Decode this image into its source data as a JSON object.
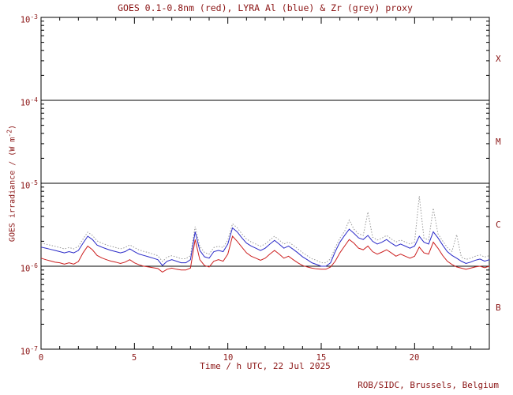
{
  "colors": {
    "text": "#8b1515",
    "frame": "#000000",
    "red_series": "#cc2020",
    "blue_series": "#2a2ac8",
    "grey_series": "#9a9a9a"
  },
  "footer": {
    "text": "ROB/SIDC, Brussels, Belgium"
  },
  "chart_data": {
    "type": "line",
    "title": "GOES 0.1-0.8nm (red), LYRA Al (blue) & Zr (grey) proxy",
    "xlabel": "Time / h UTC, 22 Jul 2025",
    "ylabel_parts": {
      "pre": "GOES irradiance / (W m",
      "exp": "-2",
      "post": ")"
    },
    "xlim": [
      0,
      24
    ],
    "ylim": [
      1e-07,
      0.001
    ],
    "y_scale": "log",
    "grid": false,
    "legend": "in title",
    "x_tick_positions": [
      0,
      5,
      10,
      15,
      20
    ],
    "x_tick_labels": [
      "0",
      "5",
      "10",
      "15",
      "20"
    ],
    "y_ticks": [
      {
        "base": "10",
        "exp": "-3"
      },
      {
        "base": "10",
        "exp": "-4"
      },
      {
        "base": "10",
        "exp": "-5"
      },
      {
        "base": "10",
        "exp": "-6"
      },
      {
        "base": "10",
        "exp": "-7"
      }
    ],
    "class_labels": [
      "X",
      "M",
      "C",
      "B"
    ],
    "hlines": [
      0.0001,
      1e-05,
      1e-06
    ],
    "x_start": 0,
    "x_step": 0.25,
    "unit_scale": 1e-06,
    "series": [
      {
        "name": "LYRA Zr proxy",
        "color_key": "grey",
        "style": "dotted",
        "values": [
          1.9,
          1.85,
          1.79,
          1.74,
          1.68,
          1.62,
          1.68,
          1.62,
          1.74,
          2.13,
          2.58,
          2.35,
          2.02,
          1.9,
          1.81,
          1.74,
          1.68,
          1.62,
          1.68,
          1.81,
          1.68,
          1.57,
          1.51,
          1.46,
          1.4,
          1.34,
          1.14,
          1.29,
          1.34,
          1.29,
          1.23,
          1.23,
          1.34,
          3.0,
          1.74,
          1.46,
          1.4,
          1.68,
          1.74,
          1.68,
          2.07,
          3.25,
          2.91,
          2.46,
          2.13,
          1.96,
          1.85,
          1.74,
          1.85,
          2.07,
          2.3,
          2.07,
          1.85,
          1.96,
          1.79,
          1.62,
          1.46,
          1.34,
          1.23,
          1.18,
          1.1,
          1.1,
          1.23,
          1.68,
          2.18,
          2.63,
          3.6,
          2.8,
          2.46,
          2.35,
          4.5,
          2.24,
          2.07,
          2.18,
          2.35,
          2.13,
          1.96,
          2.07,
          1.96,
          1.85,
          1.96,
          7.0,
          2.18,
          2.07,
          5.0,
          2.46,
          2.02,
          1.68,
          1.51,
          2.4,
          1.29,
          1.21,
          1.25,
          1.32,
          1.37,
          1.29,
          1.34
        ]
      },
      {
        "name": "LYRA Al proxy",
        "color_key": "blue",
        "style": "solid",
        "values": [
          1.7,
          1.65,
          1.6,
          1.55,
          1.5,
          1.45,
          1.5,
          1.45,
          1.55,
          1.9,
          2.3,
          2.1,
          1.8,
          1.7,
          1.62,
          1.55,
          1.5,
          1.45,
          1.5,
          1.62,
          1.5,
          1.4,
          1.35,
          1.3,
          1.25,
          1.2,
          1.02,
          1.15,
          1.2,
          1.15,
          1.1,
          1.1,
          1.2,
          2.6,
          1.55,
          1.3,
          1.25,
          1.5,
          1.55,
          1.5,
          1.85,
          2.9,
          2.6,
          2.2,
          1.9,
          1.75,
          1.65,
          1.55,
          1.65,
          1.85,
          2.05,
          1.85,
          1.65,
          1.75,
          1.6,
          1.45,
          1.3,
          1.2,
          1.1,
          1.05,
          1.0,
          1.0,
          1.1,
          1.5,
          1.95,
          2.35,
          2.8,
          2.5,
          2.2,
          2.1,
          2.35,
          2.0,
          1.85,
          1.95,
          2.1,
          1.9,
          1.75,
          1.85,
          1.75,
          1.65,
          1.75,
          2.3,
          1.95,
          1.85,
          2.6,
          2.2,
          1.8,
          1.5,
          1.35,
          1.25,
          1.15,
          1.08,
          1.12,
          1.18,
          1.22,
          1.15,
          1.2
        ]
      },
      {
        "name": "GOES 0.1-0.8nm",
        "color_key": "red",
        "style": "solid",
        "values": [
          1.25,
          1.2,
          1.16,
          1.12,
          1.1,
          1.06,
          1.1,
          1.06,
          1.14,
          1.45,
          1.75,
          1.58,
          1.35,
          1.26,
          1.2,
          1.15,
          1.12,
          1.08,
          1.12,
          1.2,
          1.1,
          1.04,
          1.0,
          0.98,
          0.96,
          0.94,
          0.85,
          0.92,
          0.95,
          0.92,
          0.9,
          0.9,
          0.95,
          2.1,
          1.2,
          1.02,
          0.98,
          1.15,
          1.2,
          1.15,
          1.4,
          2.3,
          2.0,
          1.7,
          1.45,
          1.32,
          1.25,
          1.18,
          1.25,
          1.4,
          1.55,
          1.4,
          1.25,
          1.32,
          1.2,
          1.1,
          1.02,
          0.98,
          0.95,
          0.93,
          0.92,
          0.92,
          0.98,
          1.15,
          1.45,
          1.75,
          2.1,
          1.9,
          1.65,
          1.58,
          1.75,
          1.5,
          1.4,
          1.48,
          1.58,
          1.45,
          1.32,
          1.4,
          1.32,
          1.25,
          1.32,
          1.7,
          1.45,
          1.4,
          1.95,
          1.65,
          1.35,
          1.15,
          1.05,
          0.98,
          0.95,
          0.92,
          0.95,
          0.98,
          1.0,
          0.96,
          1.0
        ]
      }
    ]
  }
}
